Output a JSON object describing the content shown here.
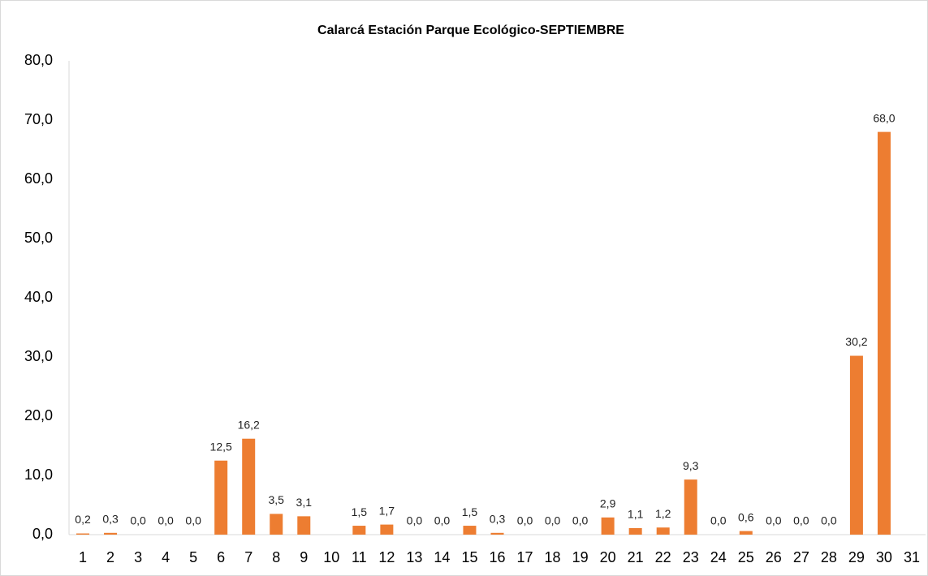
{
  "chart_data": {
    "type": "bar",
    "title": "Calarcá Estación Parque Ecológico-SEPTIEMBRE",
    "categories": [
      "1",
      "2",
      "3",
      "4",
      "5",
      "6",
      "7",
      "8",
      "9",
      "10",
      "11",
      "12",
      "13",
      "14",
      "15",
      "16",
      "17",
      "18",
      "19",
      "20",
      "21",
      "22",
      "23",
      "24",
      "25",
      "26",
      "27",
      "28",
      "29",
      "30",
      "31"
    ],
    "values": [
      0.2,
      0.3,
      0,
      0,
      0,
      12.5,
      16.2,
      3.5,
      3.1,
      null,
      1.5,
      1.7,
      0,
      0,
      1.5,
      0.3,
      0,
      0,
      0,
      2.9,
      1.1,
      1.2,
      9.3,
      0,
      0.6,
      0,
      0,
      0,
      30.2,
      68,
      null
    ],
    "value_labels": [
      "0,2",
      "0,3",
      "0,0",
      "0,0",
      "0,0",
      "12,5",
      "16,2",
      "3,5",
      "3,1",
      null,
      "1,5",
      "1,7",
      "0,0",
      "0,0",
      "1,5",
      "0,3",
      "0,0",
      "0,0",
      "0,0",
      "2,9",
      "1,1",
      "1,2",
      "9,3",
      "0,0",
      "0,6",
      "0,0",
      "0,0",
      "0,0",
      "30,2",
      "68,0",
      null
    ],
    "color": "#ed7d31",
    "ylim": [
      0,
      80
    ],
    "yticks": [
      {
        "value": 0,
        "label": "0,0"
      },
      {
        "value": 10,
        "label": "10,0"
      },
      {
        "value": 20,
        "label": "20,0"
      },
      {
        "value": 30,
        "label": "30,0"
      },
      {
        "value": 40,
        "label": "40,0"
      },
      {
        "value": 50,
        "label": "50,0"
      },
      {
        "value": 60,
        "label": "60,0"
      },
      {
        "value": 70,
        "label": "70,0"
      },
      {
        "value": 80,
        "label": "80,0"
      }
    ],
    "grid": false
  }
}
